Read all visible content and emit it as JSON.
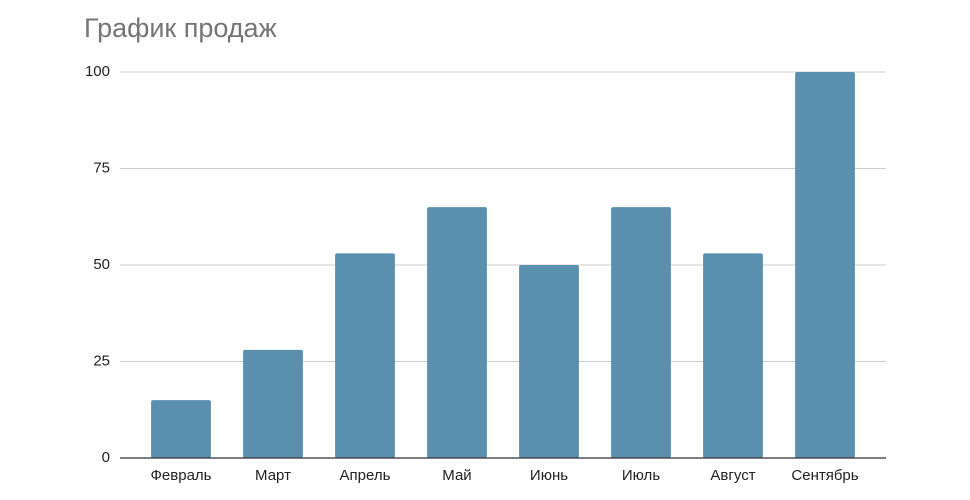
{
  "chart_data": {
    "type": "bar",
    "title": "График продаж",
    "categories": [
      "Февраль",
      "Март",
      "Апрель",
      "Май",
      "Июнь",
      "Июль",
      "Август",
      "Сентябрь"
    ],
    "values": [
      15,
      28,
      53,
      65,
      50,
      65,
      53,
      100
    ],
    "color": "#5b8fae",
    "ylim": [
      0,
      100
    ],
    "yticks": [
      0,
      25,
      50,
      75,
      100
    ],
    "grid": true
  }
}
